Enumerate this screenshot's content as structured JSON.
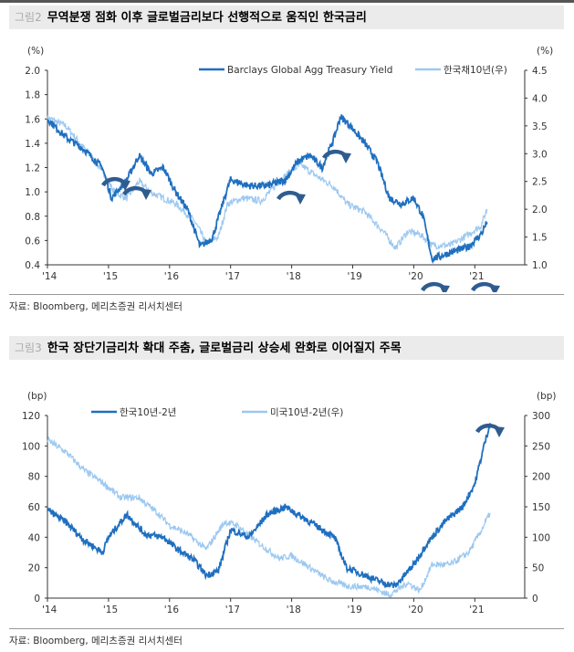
{
  "figures": [
    {
      "number": "그림2",
      "title": "무역분쟁 점화 이후 글로벌금리보다 선행적으로 움직인 한국금리",
      "source": "자료: Bloomberg, 메리츠증권 리서치센터"
    },
    {
      "number": "그림3",
      "title": "한국 장단기금리차 확대 주춤, 글로벌금리 상승세 완화로 이어질지 주목",
      "source": "자료: Bloomberg, 메리츠증권 리서치센터"
    }
  ],
  "chart_data": [
    {
      "type": "line",
      "x_ticks": [
        "'14",
        "'15",
        "'16",
        "'17",
        "'18",
        "'19",
        "'20",
        "'21"
      ],
      "left_unit": "(%)",
      "right_unit": "(%)",
      "ylim_left": [
        0.4,
        2.0
      ],
      "yticks_left": [
        "0.4",
        "0.6",
        "0.8",
        "1.0",
        "1.2",
        "1.4",
        "1.6",
        "1.8",
        "2.0"
      ],
      "ylim_right": [
        1.0,
        4.5
      ],
      "yticks_right": [
        "1.0",
        "1.5",
        "2.0",
        "2.5",
        "3.0",
        "3.5",
        "4.0",
        "4.5"
      ],
      "legend": "top-right",
      "series": [
        {
          "name": "Barclays Global Agg Treasury Yield",
          "axis": "left",
          "color": "#1f6fc0",
          "x": [
            2014.0,
            2014.3,
            2014.6,
            2014.9,
            2015.05,
            2015.3,
            2015.5,
            2015.7,
            2015.9,
            2016.1,
            2016.3,
            2016.5,
            2016.7,
            2016.9,
            2017.0,
            2017.3,
            2017.6,
            2017.9,
            2018.1,
            2018.3,
            2018.5,
            2018.7,
            2018.8,
            2018.95,
            2019.2,
            2019.4,
            2019.6,
            2019.8,
            2020.0,
            2020.15,
            2020.3,
            2020.6,
            2020.9,
            2021.1,
            2021.2
          ],
          "y": [
            1.6,
            1.45,
            1.35,
            1.2,
            0.95,
            1.1,
            1.3,
            1.15,
            1.2,
            1.0,
            0.85,
            0.55,
            0.62,
            0.95,
            1.1,
            1.05,
            1.05,
            1.1,
            1.25,
            1.3,
            1.2,
            1.45,
            1.62,
            1.55,
            1.4,
            1.25,
            0.95,
            0.9,
            0.95,
            0.8,
            0.45,
            0.5,
            0.55,
            0.65,
            0.75
          ]
        },
        {
          "name": "한국채10년(우)",
          "axis": "right",
          "color": "#9cc8f0",
          "x": [
            2014.0,
            2014.3,
            2014.6,
            2014.9,
            2015.1,
            2015.3,
            2015.5,
            2015.7,
            2015.9,
            2016.1,
            2016.4,
            2016.6,
            2016.8,
            2016.95,
            2017.2,
            2017.5,
            2017.8,
            2018.0,
            2018.15,
            2018.4,
            2018.7,
            2018.9,
            2019.2,
            2019.5,
            2019.7,
            2019.9,
            2020.1,
            2020.3,
            2020.6,
            2020.9,
            2021.1,
            2021.2
          ],
          "y": [
            3.65,
            3.5,
            3.1,
            2.7,
            2.3,
            2.2,
            2.5,
            2.3,
            2.2,
            2.1,
            1.8,
            1.4,
            1.5,
            2.1,
            2.2,
            2.15,
            2.5,
            2.7,
            2.8,
            2.6,
            2.4,
            2.1,
            1.95,
            1.6,
            1.3,
            1.6,
            1.55,
            1.35,
            1.35,
            1.55,
            1.7,
            2.0
          ]
        }
      ]
    },
    {
      "type": "line",
      "x_ticks": [
        "'14",
        "'15",
        "'16",
        "'17",
        "'18",
        "'19",
        "'20",
        "'21"
      ],
      "left_unit": "(bp)",
      "right_unit": "(bp)",
      "ylim_left": [
        0,
        120
      ],
      "yticks_left": [
        "0",
        "20",
        "40",
        "60",
        "80",
        "100",
        "120"
      ],
      "ylim_right": [
        0,
        300
      ],
      "yticks_right": [
        "0",
        "50",
        "100",
        "150",
        "200",
        "250",
        "300"
      ],
      "legend": "top-left",
      "series": [
        {
          "name": "한국10년-2년",
          "axis": "left",
          "color": "#1f6fc0",
          "x": [
            2014.0,
            2014.3,
            2014.6,
            2014.9,
            2015.0,
            2015.3,
            2015.6,
            2015.9,
            2016.1,
            2016.4,
            2016.6,
            2016.8,
            2017.0,
            2017.3,
            2017.6,
            2017.9,
            2018.1,
            2018.3,
            2018.5,
            2018.7,
            2018.9,
            2019.2,
            2019.5,
            2019.7,
            2020.0,
            2020.2,
            2020.5,
            2020.8,
            2021.0,
            2021.15,
            2021.25
          ],
          "y": [
            58,
            50,
            38,
            30,
            40,
            55,
            42,
            40,
            33,
            25,
            15,
            18,
            45,
            40,
            55,
            60,
            55,
            50,
            45,
            40,
            20,
            15,
            10,
            8,
            22,
            35,
            50,
            60,
            75,
            100,
            115
          ]
        },
        {
          "name": "미국10년-2년(우)",
          "axis": "right",
          "color": "#9cc8f0",
          "x": [
            2014.0,
            2014.3,
            2014.6,
            2014.9,
            2015.2,
            2015.5,
            2015.8,
            2016.0,
            2016.3,
            2016.6,
            2016.9,
            2017.1,
            2017.4,
            2017.8,
            2018.0,
            2018.3,
            2018.6,
            2018.9,
            2019.3,
            2019.6,
            2019.9,
            2020.1,
            2020.3,
            2020.6,
            2020.9,
            2021.1,
            2021.25
          ],
          "y": [
            260,
            240,
            210,
            190,
            165,
            165,
            140,
            120,
            105,
            80,
            125,
            120,
            95,
            65,
            70,
            50,
            30,
            20,
            18,
            5,
            25,
            12,
            55,
            55,
            75,
            110,
            140
          ]
        }
      ]
    }
  ]
}
